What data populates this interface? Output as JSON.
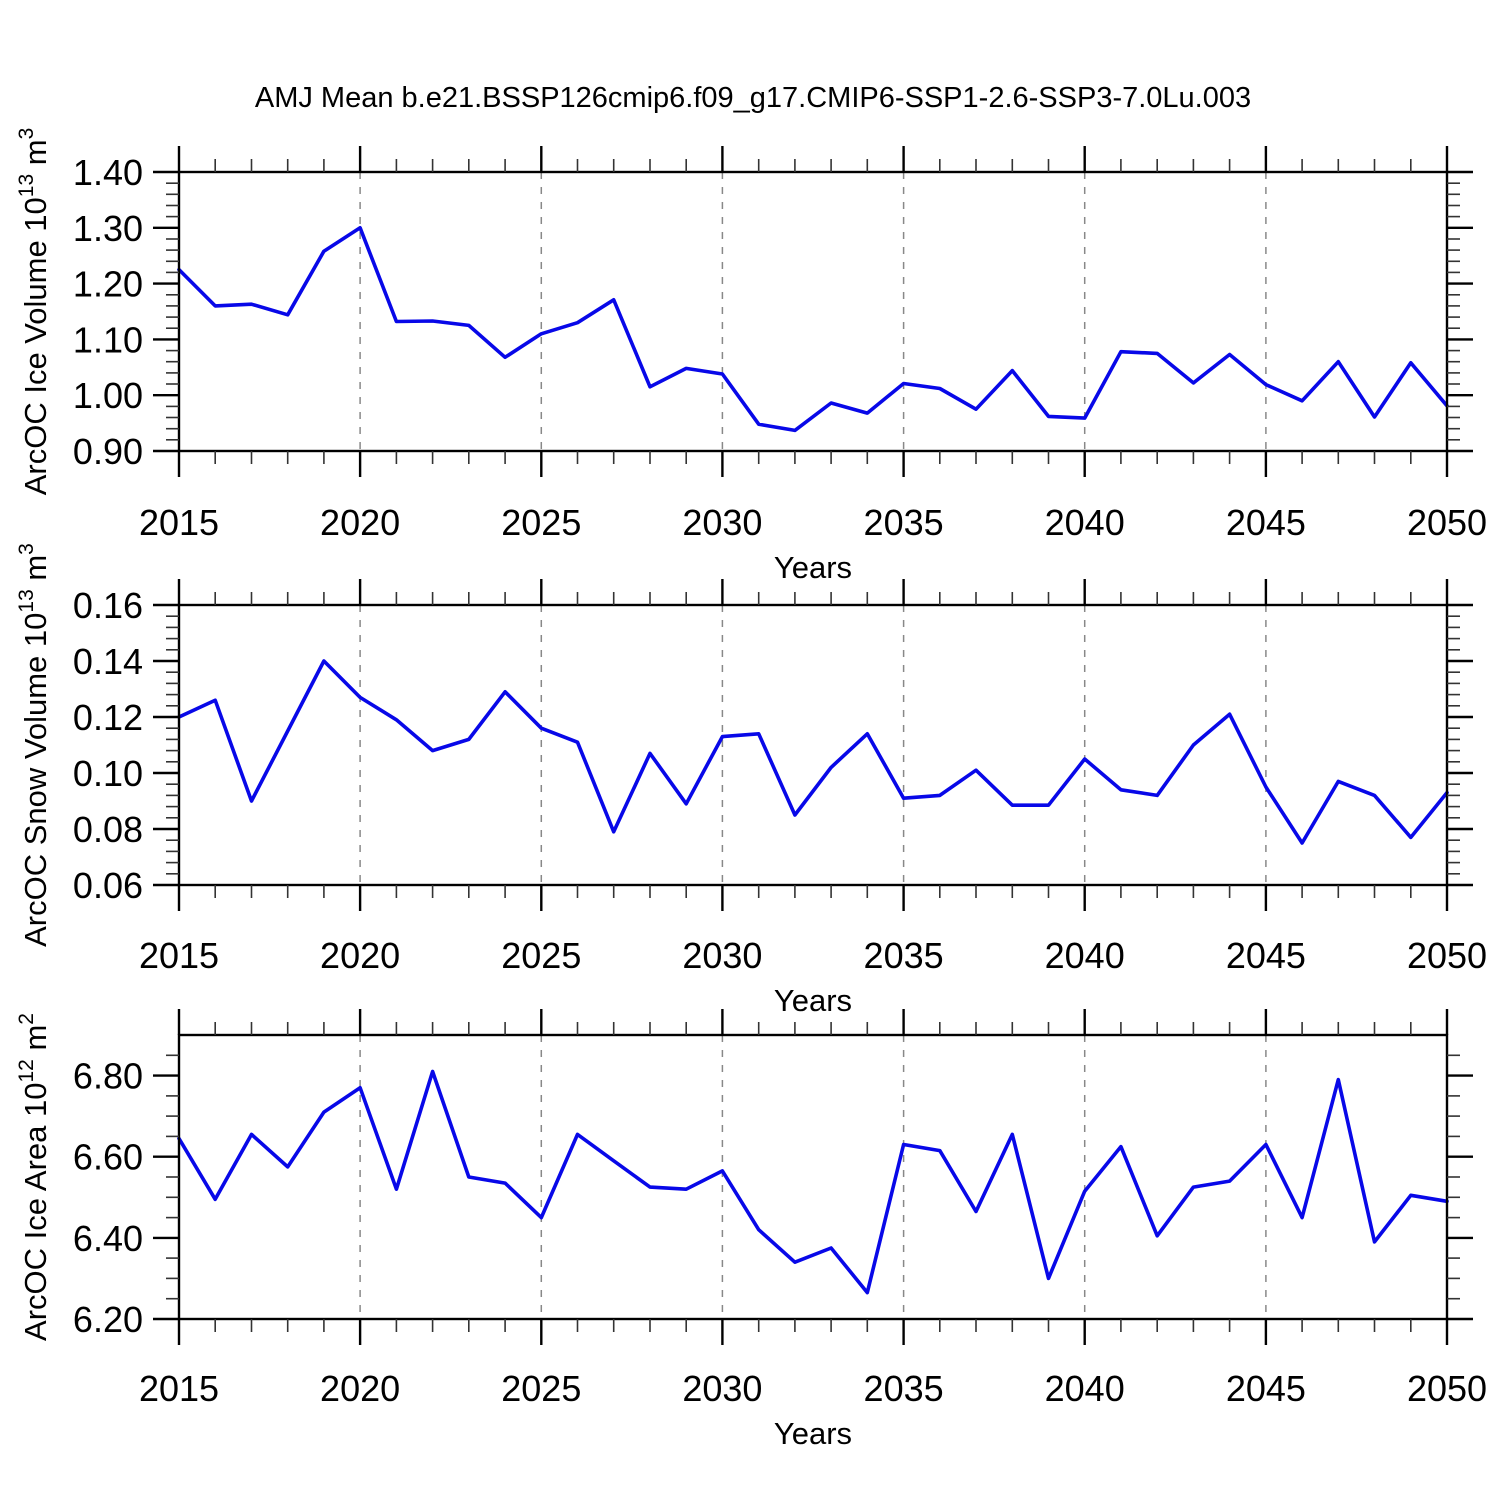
{
  "title": "AMJ Mean b.e21.BSSP126cmip6.f09_g17.CMIP6-SSP1-2.6-SSP3-7.0Lu.003",
  "colors": {
    "line": "#0808e8",
    "grid": "#888888",
    "axis": "#000000",
    "minor_tick": "#333333"
  },
  "years": [
    2015,
    2016,
    2017,
    2018,
    2019,
    2020,
    2021,
    2022,
    2023,
    2024,
    2025,
    2026,
    2027,
    2028,
    2029,
    2030,
    2031,
    2032,
    2033,
    2034,
    2035,
    2036,
    2037,
    2038,
    2039,
    2040,
    2041,
    2042,
    2043,
    2044,
    2045,
    2046,
    2047,
    2048,
    2049,
    2050
  ],
  "chart_data": [
    {
      "type": "line",
      "id": "ice-volume",
      "ylabel": {
        "base": "ArcOC Ice Volume 10",
        "exp": "13",
        "unit": " m",
        "unit_exp": "3"
      },
      "xlabel": "Years",
      "ylim": [
        0.9,
        1.4
      ],
      "ymajor": 0.1,
      "yminor": 0.02,
      "yticks": [
        0.9,
        1.0,
        1.1,
        1.2,
        1.3,
        1.4
      ],
      "ytick_labels": [
        "0.90",
        "1.00",
        "1.10",
        "1.20",
        "1.30",
        "1.40"
      ],
      "xlim": [
        2015,
        2050
      ],
      "xmajor": 5,
      "xminor": 1,
      "xticks": [
        2015,
        2020,
        2025,
        2030,
        2035,
        2040,
        2045,
        2050
      ],
      "xtick_labels": [
        "2015",
        "2020",
        "2025",
        "2030",
        "2035",
        "2040",
        "2045",
        "2050"
      ],
      "grid_years": [
        2020,
        2025,
        2030,
        2035,
        2040,
        2045
      ],
      "values": [
        1.225,
        1.16,
        1.163,
        1.144,
        1.258,
        1.3,
        1.132,
        1.133,
        1.125,
        1.068,
        1.11,
        1.13,
        1.171,
        1.015,
        1.048,
        1.038,
        0.948,
        0.937,
        0.986,
        0.968,
        1.021,
        1.012,
        0.975,
        1.044,
        0.962,
        0.959,
        1.078,
        1.075,
        1.022,
        1.073,
        1.019,
        0.99,
        1.06,
        0.961,
        1.058,
        0.981
      ]
    },
    {
      "type": "line",
      "id": "snow-volume",
      "ylabel": {
        "base": "ArcOC Snow Volume 10",
        "exp": "13",
        "unit": " m",
        "unit_exp": "3"
      },
      "xlabel": "Years",
      "ylim": [
        0.06,
        0.16
      ],
      "ymajor": 0.02,
      "yminor": 0.004,
      "yticks": [
        0.06,
        0.08,
        0.1,
        0.12,
        0.14,
        0.16
      ],
      "ytick_labels": [
        "0.06",
        "0.08",
        "0.10",
        "0.12",
        "0.14",
        "0.16"
      ],
      "xlim": [
        2015,
        2050
      ],
      "xmajor": 5,
      "xminor": 1,
      "xticks": [
        2015,
        2020,
        2025,
        2030,
        2035,
        2040,
        2045,
        2050
      ],
      "xtick_labels": [
        "2015",
        "2020",
        "2025",
        "2030",
        "2035",
        "2040",
        "2045",
        "2050"
      ],
      "grid_years": [
        2020,
        2025,
        2030,
        2035,
        2040,
        2045
      ],
      "values": [
        0.12,
        0.126,
        0.09,
        0.115,
        0.14,
        0.127,
        0.119,
        0.108,
        0.112,
        0.129,
        0.116,
        0.111,
        0.079,
        0.107,
        0.089,
        0.113,
        0.114,
        0.085,
        0.102,
        0.114,
        0.091,
        0.092,
        0.101,
        0.0885,
        0.0885,
        0.105,
        0.094,
        0.092,
        0.11,
        0.121,
        0.095,
        0.075,
        0.097,
        0.092,
        0.077,
        0.093
      ]
    },
    {
      "type": "line",
      "id": "ice-area",
      "ylabel": {
        "base": "ArcOC Ice Area 10",
        "exp": "12",
        "unit": " m",
        "unit_exp": "2"
      },
      "xlabel": "Years",
      "ylim": [
        6.2,
        6.9
      ],
      "ymajor": 0.2,
      "yminor": 0.05,
      "yticks": [
        6.2,
        6.4,
        6.6,
        6.8
      ],
      "ytick_labels": [
        "6.20",
        "6.40",
        "6.60",
        "6.80"
      ],
      "xlim": [
        2015,
        2050
      ],
      "xmajor": 5,
      "xminor": 1,
      "xticks": [
        2015,
        2020,
        2025,
        2030,
        2035,
        2040,
        2045,
        2050
      ],
      "xtick_labels": [
        "2015",
        "2020",
        "2025",
        "2030",
        "2035",
        "2040",
        "2045",
        "2050"
      ],
      "grid_years": [
        2020,
        2025,
        2030,
        2035,
        2040,
        2045
      ],
      "values": [
        6.645,
        6.495,
        6.655,
        6.575,
        6.71,
        6.77,
        6.52,
        6.81,
        6.55,
        6.535,
        6.45,
        6.655,
        6.59,
        6.525,
        6.52,
        6.565,
        6.42,
        6.34,
        6.375,
        6.265,
        6.63,
        6.615,
        6.465,
        6.655,
        6.3,
        6.515,
        6.625,
        6.405,
        6.525,
        6.54,
        6.63,
        6.45,
        6.79,
        6.39,
        6.505,
        6.49
      ]
    }
  ]
}
